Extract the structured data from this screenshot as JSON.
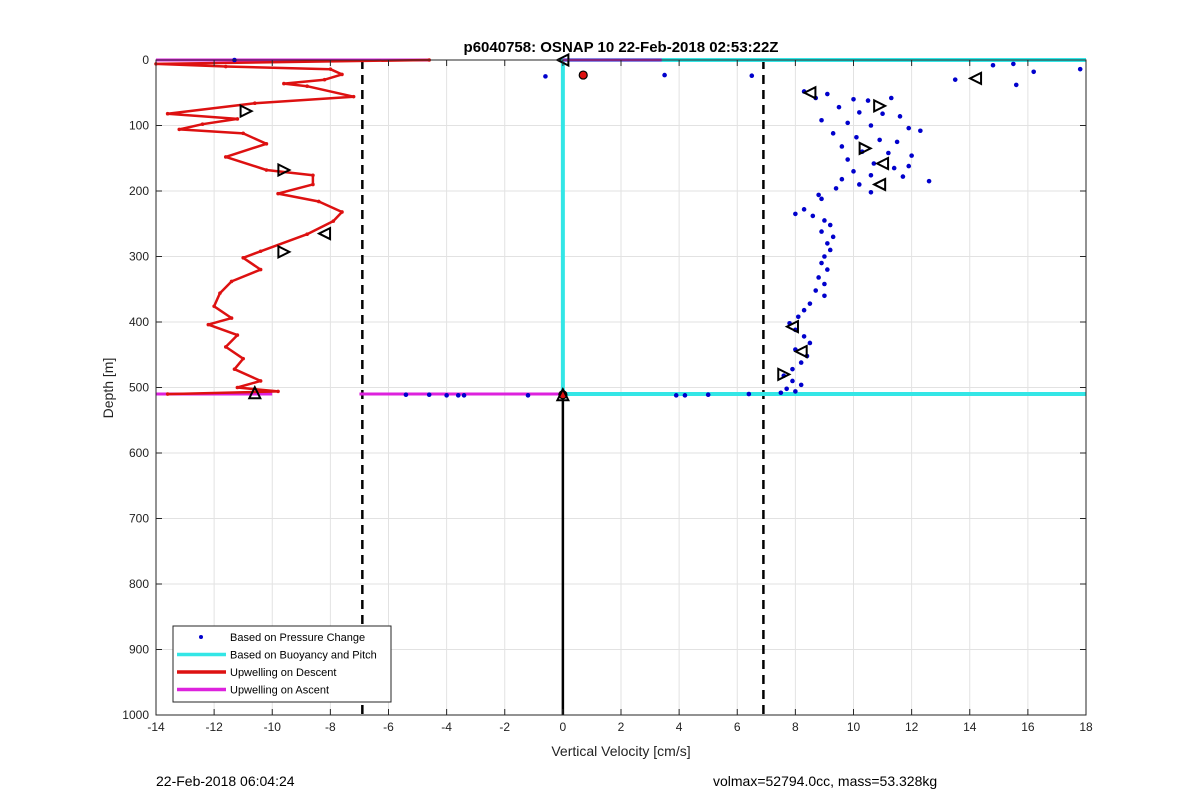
{
  "footer": {
    "left_text": "22-Feb-2018 06:04:24",
    "right_text": "volmax=52794.0cc, mass=53.328kg"
  },
  "chart_data": {
    "type": "line",
    "title": "p6040758: OSNAP 10 22-Feb-2018 02:53:22Z",
    "xlabel": "Vertical Velocity [cm/s]",
    "ylabel": "Depth [m]",
    "xlim": [
      -14,
      18
    ],
    "ylim": [
      0,
      1000
    ],
    "y_reversed": true,
    "grid": true,
    "x_ticks": [
      -14,
      -12,
      -10,
      -8,
      -6,
      -4,
      -2,
      0,
      2,
      4,
      6,
      8,
      10,
      12,
      14,
      16,
      18
    ],
    "y_ticks": [
      0,
      100,
      200,
      300,
      400,
      500,
      600,
      700,
      800,
      900,
      1000
    ],
    "legend_position": "bottom-left",
    "colors": {
      "pressure": "#0000cc",
      "buoyancy": "#33e6e6",
      "descent": "#dd1111",
      "ascent": "#dd22dd",
      "reference": "#000000"
    },
    "series": [
      {
        "name": "Based on Pressure Change",
        "style": "points",
        "points": [
          [
            -11.3,
            0
          ],
          [
            -0.6,
            25
          ],
          [
            3.5,
            23
          ],
          [
            6.5,
            24
          ],
          [
            14.8,
            8
          ],
          [
            15.5,
            6
          ],
          [
            16.2,
            18
          ],
          [
            17.8,
            14
          ],
          [
            13.5,
            30
          ],
          [
            15.6,
            38
          ],
          [
            8.3,
            48
          ],
          [
            8.7,
            58
          ],
          [
            9.1,
            52
          ],
          [
            10.0,
            60
          ],
          [
            10.5,
            62
          ],
          [
            11.3,
            58
          ],
          [
            9.5,
            72
          ],
          [
            10.2,
            80
          ],
          [
            11.0,
            82
          ],
          [
            11.6,
            86
          ],
          [
            8.9,
            92
          ],
          [
            9.8,
            96
          ],
          [
            10.6,
            100
          ],
          [
            11.9,
            104
          ],
          [
            12.3,
            108
          ],
          [
            9.3,
            112
          ],
          [
            10.1,
            118
          ],
          [
            10.9,
            122
          ],
          [
            11.5,
            125
          ],
          [
            9.6,
            132
          ],
          [
            10.3,
            140
          ],
          [
            11.2,
            142
          ],
          [
            12.0,
            146
          ],
          [
            9.8,
            152
          ],
          [
            10.7,
            158
          ],
          [
            11.9,
            162
          ],
          [
            11.4,
            165
          ],
          [
            10.0,
            170
          ],
          [
            10.6,
            176
          ],
          [
            11.7,
            178
          ],
          [
            12.6,
            185
          ],
          [
            9.6,
            182
          ],
          [
            10.2,
            190
          ],
          [
            9.4,
            196
          ],
          [
            8.8,
            206
          ],
          [
            10.6,
            202
          ],
          [
            8.9,
            212
          ],
          [
            8.3,
            228
          ],
          [
            8.0,
            235
          ],
          [
            8.6,
            238
          ],
          [
            9.0,
            245
          ],
          [
            9.2,
            252
          ],
          [
            8.9,
            262
          ],
          [
            9.3,
            270
          ],
          [
            9.1,
            280
          ],
          [
            9.2,
            290
          ],
          [
            9.0,
            300
          ],
          [
            8.9,
            310
          ],
          [
            9.1,
            320
          ],
          [
            8.8,
            332
          ],
          [
            9.0,
            342
          ],
          [
            8.7,
            352
          ],
          [
            9.0,
            360
          ],
          [
            8.5,
            372
          ],
          [
            8.3,
            382
          ],
          [
            8.1,
            392
          ],
          [
            7.8,
            402
          ],
          [
            8.0,
            412
          ],
          [
            8.3,
            422
          ],
          [
            8.5,
            432
          ],
          [
            8.0,
            442
          ],
          [
            8.4,
            452
          ],
          [
            8.2,
            462
          ],
          [
            7.9,
            472
          ],
          [
            7.6,
            482
          ],
          [
            7.9,
            490
          ],
          [
            8.2,
            496
          ],
          [
            7.7,
            502
          ],
          [
            8.0,
            506
          ],
          [
            7.5,
            508
          ],
          [
            6.4,
            510
          ],
          [
            5.0,
            511
          ],
          [
            4.2,
            512
          ],
          [
            3.9,
            512
          ],
          [
            -3.4,
            512
          ],
          [
            -3.6,
            512
          ],
          [
            -4.0,
            512
          ],
          [
            -4.6,
            511
          ],
          [
            -5.4,
            511
          ],
          [
            -1.2,
            512
          ]
        ]
      },
      {
        "name": "Based on Buoyancy and Pitch",
        "style": "line",
        "segments": [
          [
            [
              -0.1,
              0
            ],
            [
              18,
              0
            ]
          ],
          [
            [
              0,
              0
            ],
            [
              0,
              510
            ]
          ],
          [
            [
              0,
              510
            ],
            [
              18,
              510
            ]
          ]
        ]
      },
      {
        "name": "Upwelling on Descent",
        "style": "line",
        "points": [
          [
            -4.6,
            0
          ],
          [
            -14.0,
            6
          ],
          [
            -11.6,
            10
          ],
          [
            -8.0,
            14
          ],
          [
            -7.6,
            22
          ],
          [
            -8.2,
            30
          ],
          [
            -9.6,
            36
          ],
          [
            -8.8,
            40
          ],
          [
            -7.2,
            56
          ],
          [
            -10.6,
            66
          ],
          [
            -13.6,
            82
          ],
          [
            -11.2,
            90
          ],
          [
            -12.4,
            98
          ],
          [
            -13.2,
            106
          ],
          [
            -11.0,
            112
          ],
          [
            -10.2,
            128
          ],
          [
            -11.6,
            148
          ],
          [
            -10.2,
            168
          ],
          [
            -8.6,
            176
          ],
          [
            -8.6,
            190
          ],
          [
            -9.8,
            204
          ],
          [
            -8.4,
            216
          ],
          [
            -7.6,
            232
          ],
          [
            -7.9,
            246
          ],
          [
            -8.8,
            266
          ],
          [
            -10.4,
            292
          ],
          [
            -11.0,
            302
          ],
          [
            -10.4,
            320
          ],
          [
            -11.4,
            338
          ],
          [
            -11.8,
            356
          ],
          [
            -12.0,
            376
          ],
          [
            -11.4,
            394
          ],
          [
            -12.2,
            404
          ],
          [
            -11.2,
            420
          ],
          [
            -11.6,
            438
          ],
          [
            -11.0,
            456
          ],
          [
            -11.3,
            472
          ],
          [
            -10.4,
            490
          ],
          [
            -11.2,
            500
          ],
          [
            -9.8,
            506
          ],
          [
            -13.6,
            510
          ]
        ]
      },
      {
        "name": "Upwelling on Ascent",
        "style": "line",
        "segments": [
          [
            [
              -14,
              0
            ],
            [
              -4.6,
              0
            ]
          ],
          [
            [
              0,
              0
            ],
            [
              3.4,
              0
            ]
          ],
          [
            [
              -14,
              510
            ],
            [
              -10.0,
              510
            ]
          ],
          [
            [
              -7.0,
              510
            ],
            [
              -0.1,
              510
            ]
          ]
        ]
      }
    ],
    "reference_lines": {
      "dashed_x": [
        -6.9,
        6.9
      ],
      "solid_segments": [
        [
          [
            0,
            510
          ],
          [
            0,
            1000
          ]
        ]
      ]
    },
    "markers": {
      "triangles": [
        {
          "x": 0.0,
          "y": 0,
          "dir": "left"
        },
        {
          "x": -10.9,
          "y": 78,
          "dir": "right"
        },
        {
          "x": -9.6,
          "y": 168,
          "dir": "right"
        },
        {
          "x": -8.2,
          "y": 265,
          "dir": "left"
        },
        {
          "x": -9.6,
          "y": 293,
          "dir": "right"
        },
        {
          "x": -10.6,
          "y": 508,
          "dir": "up"
        },
        {
          "x": 0.0,
          "y": 511,
          "dir": "up"
        },
        {
          "x": 14.2,
          "y": 28,
          "dir": "left"
        },
        {
          "x": 8.5,
          "y": 50,
          "dir": "left"
        },
        {
          "x": 10.9,
          "y": 70,
          "dir": "right"
        },
        {
          "x": 10.4,
          "y": 135,
          "dir": "right"
        },
        {
          "x": 11.0,
          "y": 158,
          "dir": "left"
        },
        {
          "x": 10.9,
          "y": 190,
          "dir": "left"
        },
        {
          "x": 7.9,
          "y": 407,
          "dir": "left"
        },
        {
          "x": 8.2,
          "y": 445,
          "dir": "left"
        },
        {
          "x": 7.6,
          "y": 480,
          "dir": "right"
        }
      ],
      "filled_dots": [
        {
          "x": 0.7,
          "y": 23,
          "color": "#dd1111"
        },
        {
          "x": 0.0,
          "y": 511,
          "color": "#dd1111"
        }
      ]
    }
  }
}
